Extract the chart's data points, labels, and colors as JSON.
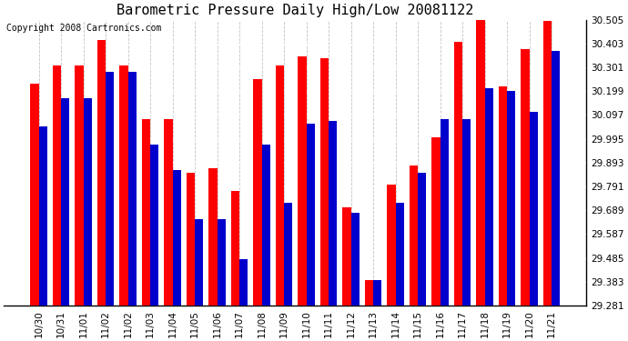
{
  "title": "Barometric Pressure Daily High/Low 20081122",
  "copyright": "Copyright 2008 Cartronics.com",
  "categories": [
    "10/30",
    "10/31",
    "11/01",
    "11/02",
    "11/02",
    "11/03",
    "11/04",
    "11/05",
    "11/06",
    "11/07",
    "11/08",
    "11/09",
    "11/10",
    "11/11",
    "11/12",
    "11/13",
    "11/14",
    "11/15",
    "11/16",
    "11/17",
    "11/18",
    "11/19",
    "11/20",
    "11/21"
  ],
  "highs": [
    30.23,
    30.31,
    30.31,
    30.42,
    30.31,
    30.08,
    30.08,
    29.85,
    29.87,
    29.77,
    30.25,
    30.31,
    30.35,
    30.34,
    29.7,
    29.39,
    29.8,
    29.88,
    30.0,
    30.41,
    30.52,
    30.22,
    30.38,
    30.5
  ],
  "lows": [
    30.05,
    30.17,
    30.17,
    30.28,
    30.28,
    29.97,
    29.86,
    29.65,
    29.65,
    29.48,
    29.97,
    29.72,
    30.06,
    30.07,
    29.68,
    29.39,
    29.72,
    29.85,
    30.08,
    30.08,
    30.21,
    30.2,
    30.11,
    30.37
  ],
  "high_color": "#ff0000",
  "low_color": "#0000cc",
  "bg_color": "#ffffff",
  "plot_bg_color": "#ffffff",
  "ylim_min": 29.281,
  "ylim_max": 30.505,
  "yticks": [
    29.281,
    29.383,
    29.485,
    29.587,
    29.689,
    29.791,
    29.893,
    29.995,
    30.097,
    30.199,
    30.301,
    30.403,
    30.505
  ],
  "title_fontsize": 11,
  "copyright_fontsize": 7,
  "tick_fontsize": 7.5,
  "bar_width": 0.38
}
